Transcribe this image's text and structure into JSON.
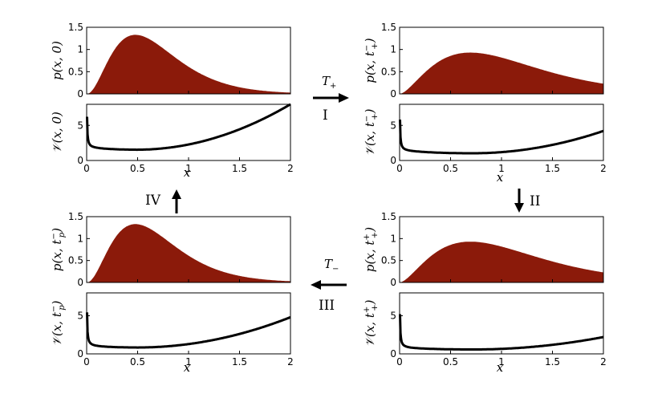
{
  "figure": {
    "panels": [
      {
        "id": "top-left",
        "density": {
          "ylabel_main": "p(x, 0)",
          "yticks": [
            "0",
            "0.5",
            "1",
            "1.5"
          ],
          "ylim": [
            0,
            1.5
          ],
          "peak_x": 0.48,
          "peak_y": 1.33,
          "shape": "narrow"
        },
        "potential": {
          "ylabel_main": "𝒱(x, 0)",
          "yticks": [
            "0",
            "5"
          ],
          "ylim": [
            0,
            8
          ],
          "min_x": 0.48,
          "min_y": 1.5,
          "end_y": 8.0
        },
        "xticks": [
          "0",
          "0.5",
          "1",
          "1.5",
          "2"
        ],
        "xlabel": "x"
      },
      {
        "id": "top-right",
        "density": {
          "ylabel_main": "p(x, t",
          "ylabel_sup": "−",
          "ylabel_sub": "+",
          "ylabel_end": ")",
          "yticks": [
            "0",
            "0.5",
            "1",
            "1.5"
          ],
          "ylim": [
            0,
            1.5
          ],
          "peak_x": 0.7,
          "peak_y": 0.93,
          "shape": "wide"
        },
        "potential": {
          "ylabel_main": "𝒱(x, t",
          "ylabel_sup": "−",
          "ylabel_sub": "+",
          "ylabel_end": ")",
          "yticks": [
            "0",
            "5"
          ],
          "ylim": [
            0,
            8
          ],
          "min_x": 0.7,
          "min_y": 1.0,
          "end_y": 4.2
        },
        "xticks": [
          "0",
          "0.5",
          "1",
          "1.5",
          "2"
        ],
        "xlabel": "x"
      },
      {
        "id": "bottom-left",
        "density": {
          "ylabel_main": "p(x, t",
          "ylabel_sup": "−",
          "ylabel_sub": "p",
          "ylabel_end": ")",
          "yticks": [
            "0",
            "0.5",
            "1",
            "1.5"
          ],
          "ylim": [
            0,
            1.5
          ],
          "peak_x": 0.48,
          "peak_y": 1.33,
          "shape": "narrow"
        },
        "potential": {
          "ylabel_main": "𝒱(x, t",
          "ylabel_sup": "−",
          "ylabel_sub": "p",
          "ylabel_end": ")",
          "yticks": [
            "0",
            "5"
          ],
          "ylim": [
            0,
            8
          ],
          "min_x": 0.48,
          "min_y": 0.8,
          "end_y": 4.8
        },
        "xticks": [
          "0",
          "0.5",
          "1",
          "1.5",
          "2"
        ],
        "xlabel": "x"
      },
      {
        "id": "bottom-right",
        "density": {
          "ylabel_main": "p(x, t",
          "ylabel_sup": "+",
          "ylabel_sub": "+",
          "ylabel_end": ")",
          "yticks": [
            "0",
            "0.5",
            "1",
            "1.5"
          ],
          "ylim": [
            0,
            1.5
          ],
          "peak_x": 0.7,
          "peak_y": 0.93,
          "shape": "wide"
        },
        "potential": {
          "ylabel_main": "𝒱(x, t",
          "ylabel_sup": "+",
          "ylabel_sub": "+",
          "ylabel_end": ")",
          "yticks": [
            "0",
            "5"
          ],
          "ylim": [
            0,
            8
          ],
          "min_x": 0.7,
          "min_y": 0.55,
          "end_y": 2.2
        },
        "xticks": [
          "0",
          "0.5",
          "1",
          "1.5",
          "2"
        ],
        "xlabel": "x"
      }
    ],
    "steps": {
      "I": {
        "numeral": "I",
        "temp_main": "T",
        "temp_sub": "+"
      },
      "II": {
        "numeral": "II"
      },
      "III": {
        "numeral": "III",
        "temp_main": "T",
        "temp_sub": "−"
      },
      "IV": {
        "numeral": "IV"
      }
    },
    "colors": {
      "fill": "#8b1a0a",
      "line": "#000000",
      "axis": "#000000"
    }
  }
}
